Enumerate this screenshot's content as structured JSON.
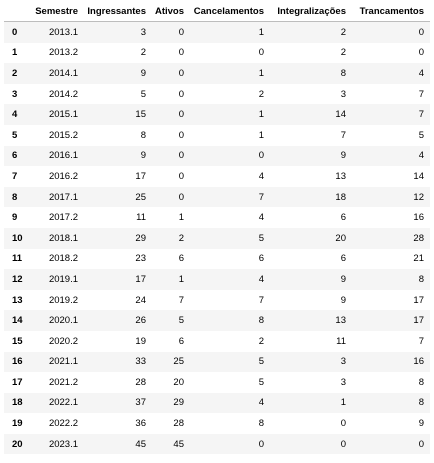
{
  "table": {
    "index_header": "",
    "columns": [
      "Semestre",
      "Ingressantes",
      "Ativos",
      "Cancelamentos",
      "Integralizações",
      "Trancamentos"
    ],
    "rows": [
      {
        "index": "0",
        "cells": [
          "2013.1",
          "3",
          "0",
          "1",
          "2",
          "0"
        ]
      },
      {
        "index": "1",
        "cells": [
          "2013.2",
          "2",
          "0",
          "0",
          "2",
          "0"
        ]
      },
      {
        "index": "2",
        "cells": [
          "2014.1",
          "9",
          "0",
          "1",
          "8",
          "4"
        ]
      },
      {
        "index": "3",
        "cells": [
          "2014.2",
          "5",
          "0",
          "2",
          "3",
          "7"
        ]
      },
      {
        "index": "4",
        "cells": [
          "2015.1",
          "15",
          "0",
          "1",
          "14",
          "7"
        ]
      },
      {
        "index": "5",
        "cells": [
          "2015.2",
          "8",
          "0",
          "1",
          "7",
          "5"
        ]
      },
      {
        "index": "6",
        "cells": [
          "2016.1",
          "9",
          "0",
          "0",
          "9",
          "4"
        ]
      },
      {
        "index": "7",
        "cells": [
          "2016.2",
          "17",
          "0",
          "4",
          "13",
          "14"
        ]
      },
      {
        "index": "8",
        "cells": [
          "2017.1",
          "25",
          "0",
          "7",
          "18",
          "12"
        ]
      },
      {
        "index": "9",
        "cells": [
          "2017.2",
          "11",
          "1",
          "4",
          "6",
          "16"
        ]
      },
      {
        "index": "10",
        "cells": [
          "2018.1",
          "29",
          "2",
          "5",
          "20",
          "28"
        ]
      },
      {
        "index": "11",
        "cells": [
          "2018.2",
          "23",
          "6",
          "6",
          "6",
          "21"
        ]
      },
      {
        "index": "12",
        "cells": [
          "2019.1",
          "17",
          "1",
          "4",
          "9",
          "8"
        ]
      },
      {
        "index": "13",
        "cells": [
          "2019.2",
          "24",
          "7",
          "7",
          "9",
          "17"
        ]
      },
      {
        "index": "14",
        "cells": [
          "2020.1",
          "26",
          "5",
          "8",
          "13",
          "17"
        ]
      },
      {
        "index": "15",
        "cells": [
          "2020.2",
          "19",
          "6",
          "2",
          "11",
          "7"
        ]
      },
      {
        "index": "16",
        "cells": [
          "2021.1",
          "33",
          "25",
          "5",
          "3",
          "16"
        ]
      },
      {
        "index": "17",
        "cells": [
          "2021.2",
          "28",
          "20",
          "5",
          "3",
          "8"
        ]
      },
      {
        "index": "18",
        "cells": [
          "2022.1",
          "37",
          "29",
          "4",
          "1",
          "8"
        ]
      },
      {
        "index": "19",
        "cells": [
          "2022.2",
          "36",
          "28",
          "8",
          "0",
          "9"
        ]
      },
      {
        "index": "20",
        "cells": [
          "2023.1",
          "45",
          "45",
          "0",
          "0",
          "0"
        ]
      }
    ]
  }
}
